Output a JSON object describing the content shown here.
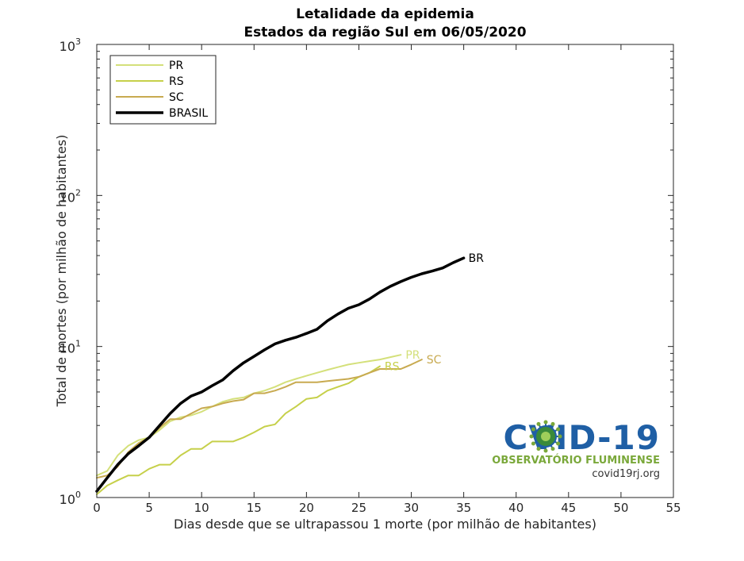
{
  "chart_data": {
    "type": "line",
    "title": "Letalidade da epidemia",
    "subtitle": "Estados da região Sul em 06/05/2020",
    "xlabel": "Dias desde que se ultrapassou 1 morte (por milhão de habitantes)",
    "ylabel": "Total de mortes (por milhão de habitantes)",
    "xlim": [
      0,
      55
    ],
    "ylim": [
      1,
      1000
    ],
    "yscale": "log",
    "grid": false,
    "legend_position": "top-left",
    "x_ticks": [
      0,
      5,
      10,
      15,
      20,
      25,
      30,
      35,
      40,
      45,
      50,
      55
    ],
    "y_ticks": [
      {
        "value": 1,
        "base": "10",
        "exp": "0"
      },
      {
        "value": 10,
        "base": "10",
        "exp": "1"
      },
      {
        "value": 100,
        "base": "10",
        "exp": "2"
      },
      {
        "value": 1000,
        "base": "10",
        "exp": "3"
      }
    ],
    "series": [
      {
        "name": "PR",
        "end_label": "PR",
        "color": "#d4e07a",
        "width": 2,
        "x": [
          0,
          1,
          2,
          3,
          4,
          5,
          6,
          7,
          8,
          9,
          10,
          11,
          12,
          13,
          14,
          15,
          16,
          17,
          18,
          19,
          20,
          21,
          22,
          23,
          24,
          25,
          26,
          27,
          28,
          29
        ],
        "y": [
          1.4,
          1.5,
          1.9,
          2.2,
          2.4,
          2.5,
          2.8,
          3.2,
          3.4,
          3.5,
          3.7,
          4.0,
          4.3,
          4.5,
          4.6,
          4.9,
          5.1,
          5.4,
          5.8,
          6.1,
          6.4,
          6.7,
          7.0,
          7.3,
          7.6,
          7.8,
          8.0,
          8.2,
          8.5,
          8.8
        ]
      },
      {
        "name": "RS",
        "end_label": "RS",
        "color": "#c6d04a",
        "width": 2,
        "x": [
          0,
          1,
          2,
          3,
          4,
          5,
          6,
          7,
          8,
          9,
          10,
          11,
          12,
          13,
          14,
          15,
          16,
          17,
          18,
          19,
          20,
          21,
          22,
          23,
          24,
          25,
          26,
          27
        ],
        "y": [
          1.05,
          1.2,
          1.3,
          1.4,
          1.4,
          1.55,
          1.65,
          1.65,
          1.9,
          2.1,
          2.1,
          2.35,
          2.35,
          2.35,
          2.5,
          2.7,
          2.95,
          3.05,
          3.6,
          4.0,
          4.5,
          4.6,
          5.1,
          5.4,
          5.7,
          6.3,
          6.7,
          7.4
        ]
      },
      {
        "name": "SC",
        "end_label": "SC",
        "color": "#c8aa50",
        "width": 2,
        "x": [
          0,
          1,
          2,
          3,
          4,
          5,
          6,
          7,
          8,
          9,
          10,
          11,
          12,
          13,
          14,
          15,
          16,
          17,
          18,
          19,
          20,
          21,
          22,
          23,
          24,
          25,
          26,
          27,
          28,
          29,
          30,
          31
        ],
        "y": [
          1.35,
          1.4,
          1.6,
          2.0,
          2.3,
          2.5,
          2.9,
          3.3,
          3.3,
          3.6,
          3.9,
          4.0,
          4.2,
          4.35,
          4.45,
          4.9,
          4.9,
          5.1,
          5.4,
          5.8,
          5.8,
          5.8,
          5.9,
          6.0,
          6.1,
          6.3,
          6.7,
          7.1,
          7.1,
          7.1,
          7.6,
          8.2
        ]
      },
      {
        "name": "BRASIL",
        "end_label": "BR",
        "color": "#000000",
        "width": 3.5,
        "x": [
          0,
          1,
          2,
          3,
          4,
          5,
          6,
          7,
          8,
          9,
          10,
          11,
          12,
          13,
          14,
          15,
          16,
          17,
          18,
          19,
          20,
          21,
          22,
          23,
          24,
          25,
          26,
          27,
          28,
          29,
          30,
          31,
          32,
          33,
          34,
          35
        ],
        "y": [
          1.1,
          1.35,
          1.65,
          1.95,
          2.2,
          2.5,
          3.0,
          3.6,
          4.2,
          4.7,
          5.0,
          5.5,
          6.0,
          6.9,
          7.8,
          8.6,
          9.5,
          10.4,
          11.0,
          11.5,
          12.2,
          13.0,
          14.8,
          16.4,
          17.9,
          18.9,
          20.6,
          22.9,
          25.0,
          26.9,
          28.7,
          30.3,
          31.6,
          33.1,
          35.9,
          38.5
        ]
      }
    ]
  },
  "logo": {
    "title_prefix": "C",
    "title_suffix": "VID-19",
    "subtitle": "OBSERVATÓRIO FLUMINENSE",
    "url": "covid19rj.org",
    "title_color": "#1f5fa5",
    "subtitle_color": "#7aa83a",
    "url_color": "#333333"
  }
}
